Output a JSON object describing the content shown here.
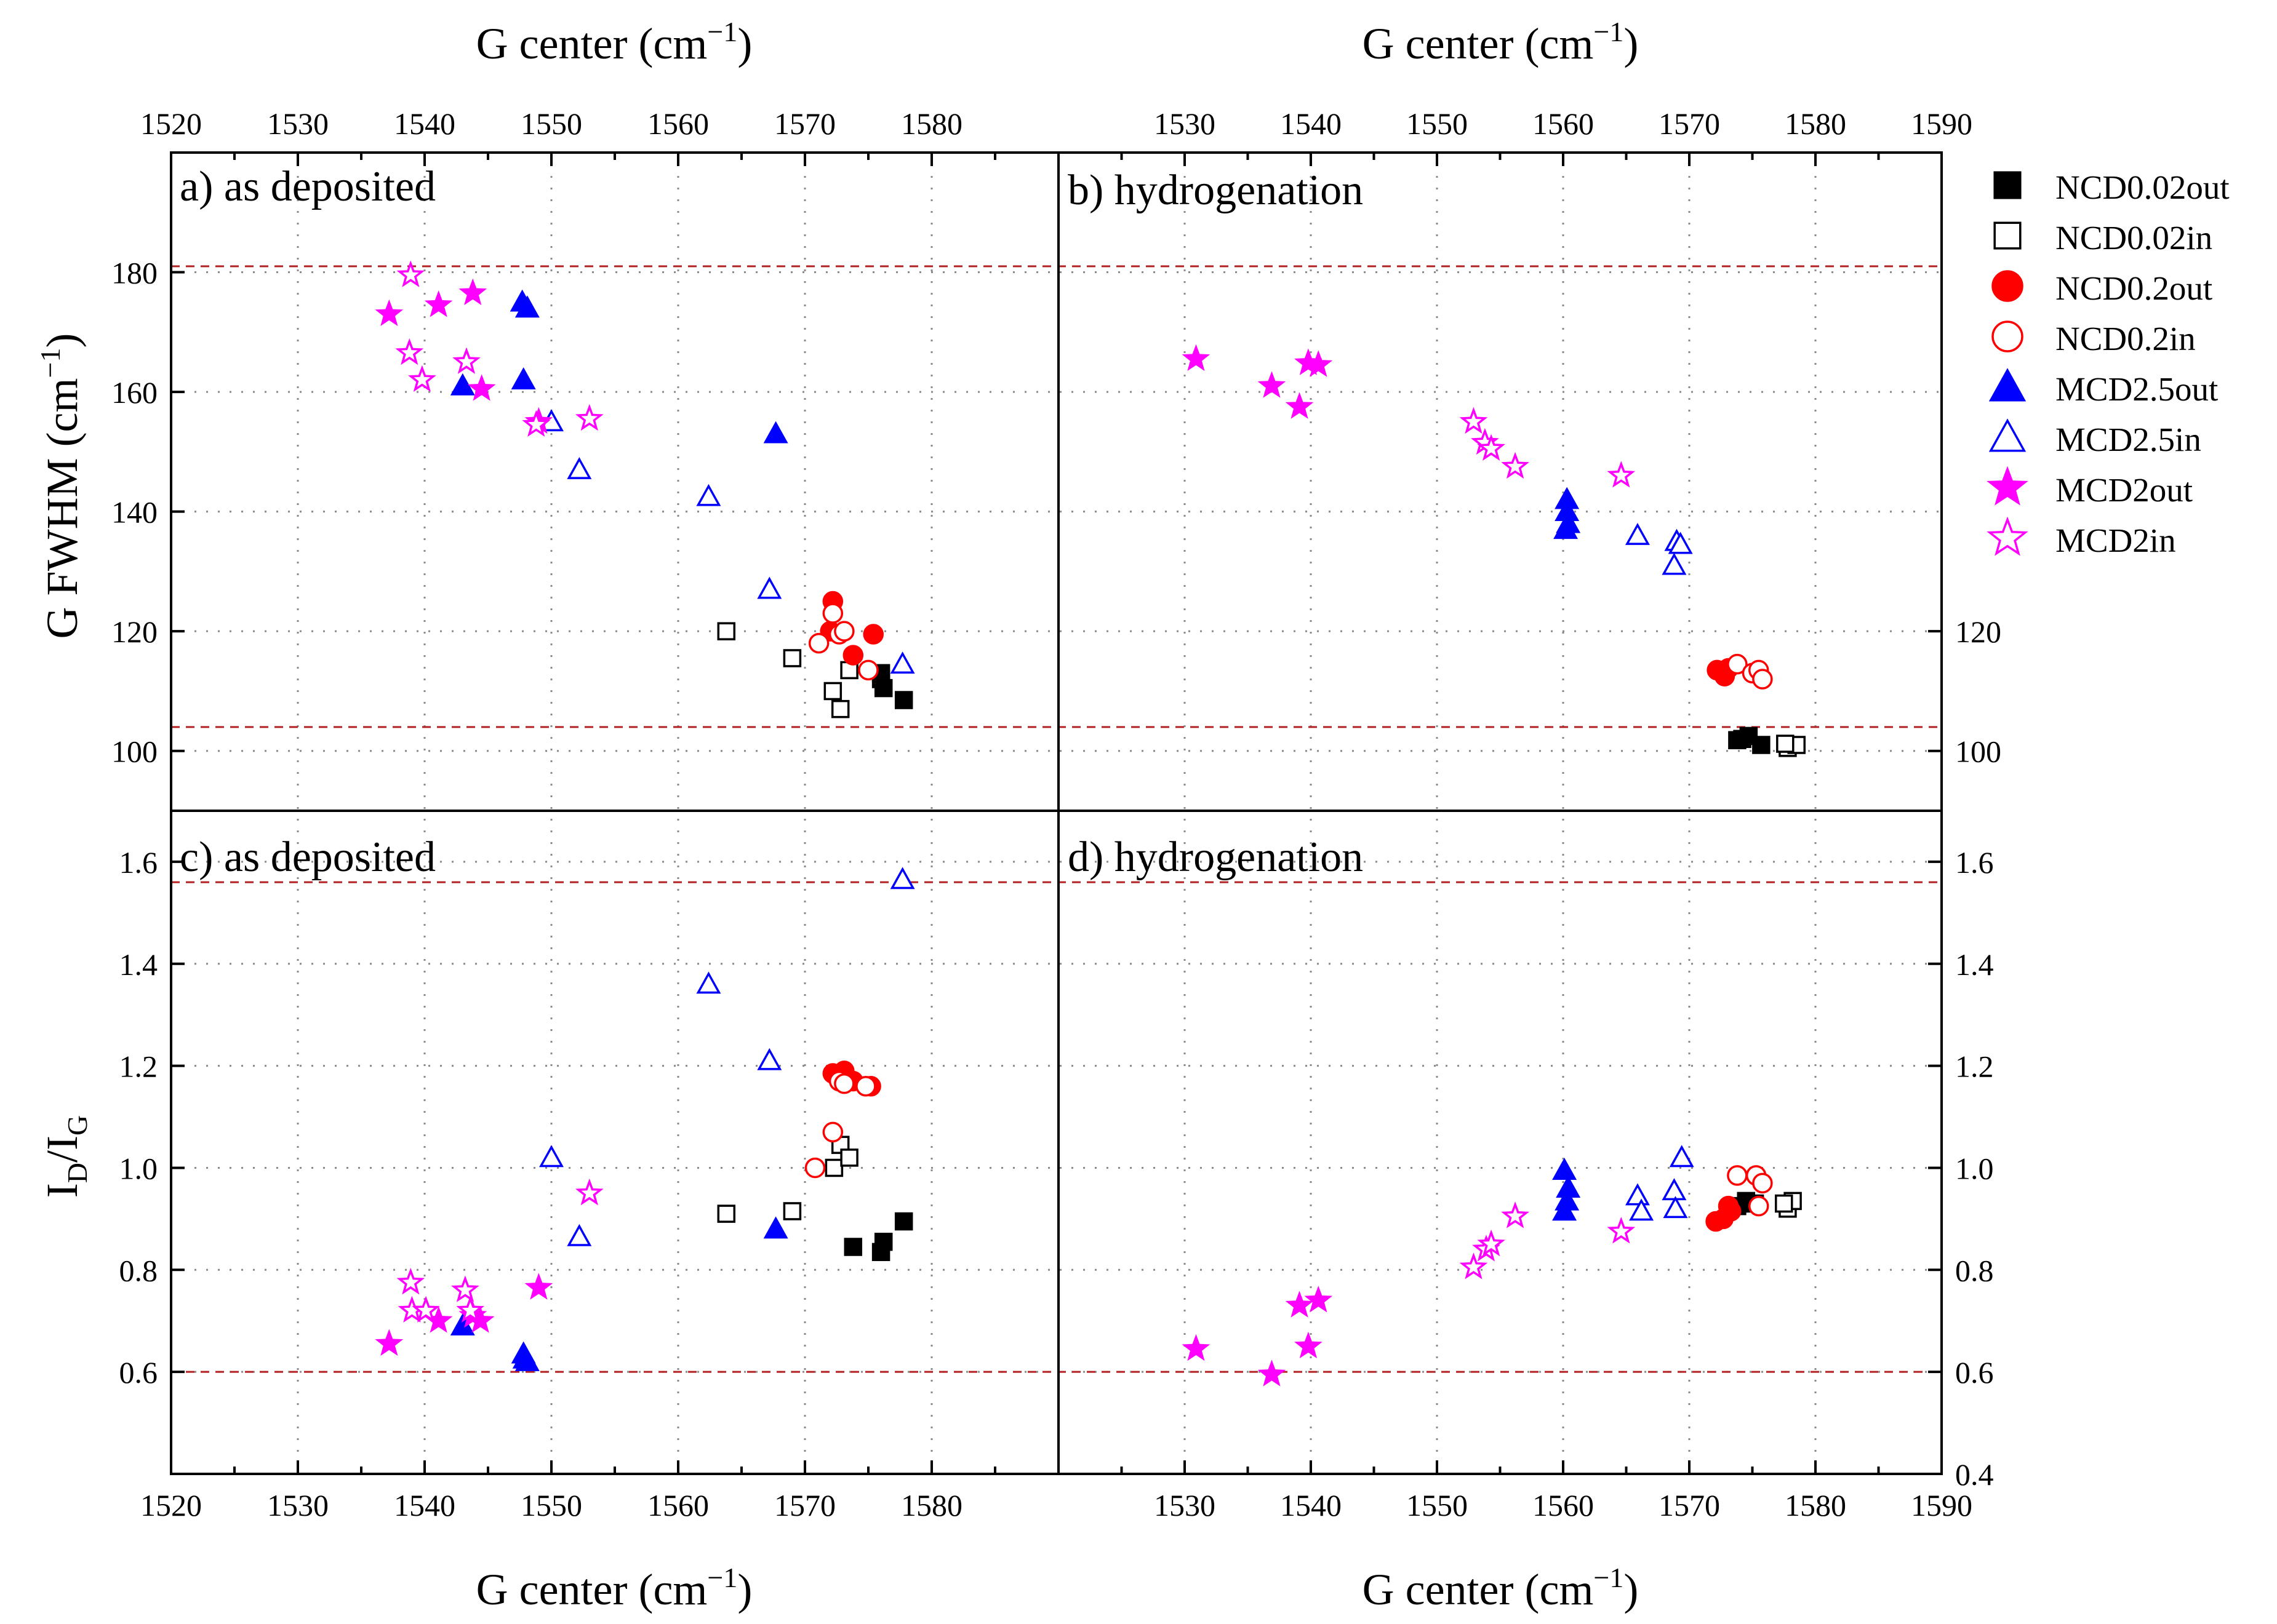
{
  "chart_data": {
    "type": "scatter",
    "top_xlabel": "G center (cm",
    "bottom_xlabel": "G center (cm",
    "xlabel_exponent": "−1",
    "xlabel_close": ")",
    "ylabel_fwhm": "G FWHM (cm",
    "ylabel_fwhm_exponent": "−1",
    "ylabel_fwhm_close": ")",
    "ylabel_ratio": {
      "I1": "I",
      "sub1": "D",
      "slash": "/I",
      "sub2": "G"
    },
    "left_xlim": [
      1520,
      1590
    ],
    "left_xticks": [
      "1520",
      "1530",
      "1540",
      "1550",
      "1560",
      "1570",
      "1580"
    ],
    "right_xlim": [
      1520,
      1590
    ],
    "right_xticks": [
      "1530",
      "1540",
      "1550",
      "1560",
      "1570",
      "1580",
      "1590"
    ],
    "fwhm_ylim": [
      90,
      200
    ],
    "fwhm_left_yticks": [
      "100",
      "120",
      "140",
      "160",
      "180"
    ],
    "fwhm_right_yticks": [
      "100",
      "120"
    ],
    "ratio_ylim": [
      0.4,
      1.7
    ],
    "ratio_left_yticks": [
      "0.6",
      "0.8",
      "1.0",
      "1.2",
      "1.4",
      "1.6"
    ],
    "ratio_right_yticks": [
      "0.4",
      "0.6",
      "0.8",
      "1.0",
      "1.2",
      "1.4",
      "1.6"
    ],
    "reference_lines": {
      "fwhm": [
        181,
        104
      ],
      "ratio": [
        1.56,
        0.6
      ]
    },
    "panels": {
      "a": {
        "title": "a)  as deposited"
      },
      "b": {
        "title": "b) hydrogenation"
      },
      "c": {
        "title": "c) as deposited"
      },
      "d": {
        "title": "d) hydrogenation"
      }
    },
    "series": [
      {
        "name": "NCD0.02out",
        "marker": "square",
        "filled": true,
        "color": "#000000",
        "a": [
          [
            1576,
            113
          ],
          [
            1576.2,
            110.5
          ],
          [
            1577.8,
            108.5
          ],
          [
            1576,
            112
          ]
        ],
        "b": [
          [
            1573.8,
            101.8
          ],
          [
            1574.7,
            102.5
          ],
          [
            1575.7,
            101
          ],
          [
            1574.2,
            102
          ]
        ],
        "c": [
          [
            1573.8,
            0.845
          ],
          [
            1576,
            0.835
          ],
          [
            1576.2,
            0.855
          ],
          [
            1577.8,
            0.895
          ]
        ],
        "d": [
          [
            1573.8,
            0.925
          ],
          [
            1574.5,
            0.935
          ],
          [
            1575.2,
            0.93
          ]
        ]
      },
      {
        "name": "NCD0.02in",
        "marker": "square",
        "filled": false,
        "color": "#000000",
        "a": [
          [
            1563.8,
            120
          ],
          [
            1569,
            115.5
          ],
          [
            1572.2,
            110
          ],
          [
            1572.8,
            107
          ],
          [
            1573.5,
            113.5
          ]
        ],
        "b": [
          [
            1577.8,
            100.5
          ],
          [
            1578.5,
            101
          ],
          [
            1577.6,
            101.2
          ]
        ],
        "c": [
          [
            1563.8,
            0.91
          ],
          [
            1569,
            0.915
          ],
          [
            1572.3,
            1.0
          ],
          [
            1572.8,
            1.045
          ],
          [
            1573.5,
            1.02
          ]
        ],
        "d": [
          [
            1577.8,
            0.92
          ],
          [
            1578.2,
            0.935
          ],
          [
            1577.5,
            0.93
          ]
        ]
      },
      {
        "name": "NCD0.2out",
        "marker": "circle",
        "filled": true,
        "color": "#ff0000",
        "a": [
          [
            1572.2,
            125
          ],
          [
            1572,
            120
          ],
          [
            1573.8,
            116
          ],
          [
            1575.4,
            119.5
          ]
        ],
        "b": [
          [
            1572.2,
            113.5
          ],
          [
            1572.8,
            112.5
          ],
          [
            1573.1,
            113.8
          ]
        ],
        "c": [
          [
            1572.2,
            1.185
          ],
          [
            1573.1,
            1.19
          ],
          [
            1573.8,
            1.17
          ],
          [
            1575.2,
            1.16
          ]
        ],
        "d": [
          [
            1572.1,
            0.895
          ],
          [
            1572.7,
            0.9
          ],
          [
            1573.3,
            0.915
          ],
          [
            1573.1,
            0.925
          ]
        ]
      },
      {
        "name": "NCD0.2in",
        "marker": "circle",
        "filled": false,
        "color": "#ff0000",
        "a": [
          [
            1571.1,
            118
          ],
          [
            1572.2,
            123
          ],
          [
            1572.7,
            119.5
          ],
          [
            1573.1,
            120
          ],
          [
            1575,
            113.5
          ]
        ],
        "b": [
          [
            1573.8,
            114.5
          ],
          [
            1575,
            113
          ],
          [
            1575.5,
            113.5
          ],
          [
            1575.8,
            112
          ]
        ],
        "c": [
          [
            1570.8,
            1.0
          ],
          [
            1572.2,
            1.07
          ],
          [
            1572.7,
            1.17
          ],
          [
            1573.1,
            1.165
          ],
          [
            1574.8,
            1.16
          ]
        ],
        "d": [
          [
            1573.8,
            0.985
          ],
          [
            1575.3,
            0.985
          ],
          [
            1575.8,
            0.97
          ],
          [
            1575.5,
            0.925
          ]
        ]
      },
      {
        "name": "MCD2.5out",
        "marker": "triangle",
        "filled": true,
        "color": "#0000ff",
        "a": [
          [
            1543,
            161
          ],
          [
            1547.8,
            162
          ],
          [
            1547.7,
            175
          ],
          [
            1548.1,
            174
          ],
          [
            1567.7,
            153
          ]
        ],
        "b": [
          [
            1560.3,
            142
          ],
          [
            1560.3,
            140
          ],
          [
            1560.4,
            138
          ],
          [
            1560.2,
            137
          ]
        ],
        "c": [
          [
            1543,
            0.69
          ],
          [
            1547.8,
            0.635
          ],
          [
            1547.9,
            0.625
          ],
          [
            1548.1,
            0.62
          ],
          [
            1567.7,
            0.88
          ]
        ],
        "d": [
          [
            1560.1,
            0.995
          ],
          [
            1560.4,
            0.96
          ],
          [
            1560.3,
            0.935
          ],
          [
            1560.1,
            0.915
          ]
        ]
      },
      {
        "name": "MCD2.5in",
        "marker": "triangle",
        "filled": false,
        "color": "#0000ff",
        "a": [
          [
            1550,
            155
          ],
          [
            1552.2,
            147
          ],
          [
            1562.4,
            142.5
          ],
          [
            1567.2,
            127
          ],
          [
            1577.7,
            114.5
          ]
        ],
        "b": [
          [
            1565.9,
            136
          ],
          [
            1568.8,
            131
          ],
          [
            1569,
            135
          ],
          [
            1569.3,
            134.5
          ]
        ],
        "c": [
          [
            1550,
            1.02
          ],
          [
            1552.2,
            0.865
          ],
          [
            1562.4,
            1.36
          ],
          [
            1567.2,
            1.21
          ],
          [
            1577.7,
            1.565
          ]
        ],
        "d": [
          [
            1565.9,
            0.945
          ],
          [
            1566.2,
            0.915
          ],
          [
            1568.8,
            0.955
          ],
          [
            1568.9,
            0.92
          ],
          [
            1569.4,
            1.02
          ]
        ]
      },
      {
        "name": "MCD2out",
        "marker": "star",
        "filled": true,
        "color": "#ff00ff",
        "a": [
          [
            1537.2,
            173
          ],
          [
            1541.1,
            174.5
          ],
          [
            1543.8,
            176.5
          ],
          [
            1544.5,
            160.5
          ],
          [
            1549,
            155
          ]
        ],
        "b": [
          [
            1530.9,
            165.5
          ],
          [
            1536.9,
            161
          ],
          [
            1539.1,
            157.5
          ],
          [
            1539.8,
            164.8
          ],
          [
            1540.6,
            164.5
          ]
        ],
        "c": [
          [
            1537.2,
            0.655
          ],
          [
            1541.1,
            0.7
          ],
          [
            1543.8,
            0.71
          ],
          [
            1544.4,
            0.7
          ],
          [
            1549,
            0.765
          ]
        ],
        "d": [
          [
            1530.9,
            0.645
          ],
          [
            1536.9,
            0.595
          ],
          [
            1539.1,
            0.73
          ],
          [
            1539.8,
            0.65
          ],
          [
            1540.6,
            0.74
          ]
        ]
      },
      {
        "name": "MCD2in",
        "marker": "star",
        "filled": false,
        "color": "#ff00ff",
        "a": [
          [
            1538.9,
            179.5
          ],
          [
            1538.8,
            166.5
          ],
          [
            1539.8,
            162
          ],
          [
            1543.3,
            165
          ],
          [
            1548.8,
            154.5
          ],
          [
            1553,
            155.5
          ]
        ],
        "b": [
          [
            1552.9,
            155
          ],
          [
            1553.8,
            151.5
          ],
          [
            1554.3,
            150.5
          ],
          [
            1556.2,
            147.5
          ],
          [
            1564.6,
            146
          ]
        ],
        "c": [
          [
            1538.9,
            0.775
          ],
          [
            1539,
            0.72
          ],
          [
            1540.1,
            0.72
          ],
          [
            1543.2,
            0.76
          ],
          [
            1543.6,
            0.72
          ],
          [
            1553,
            0.95
          ]
        ],
        "d": [
          [
            1552.9,
            0.805
          ],
          [
            1553.9,
            0.84
          ],
          [
            1554.3,
            0.85
          ],
          [
            1556.2,
            0.905
          ],
          [
            1564.6,
            0.875
          ]
        ]
      }
    ]
  }
}
